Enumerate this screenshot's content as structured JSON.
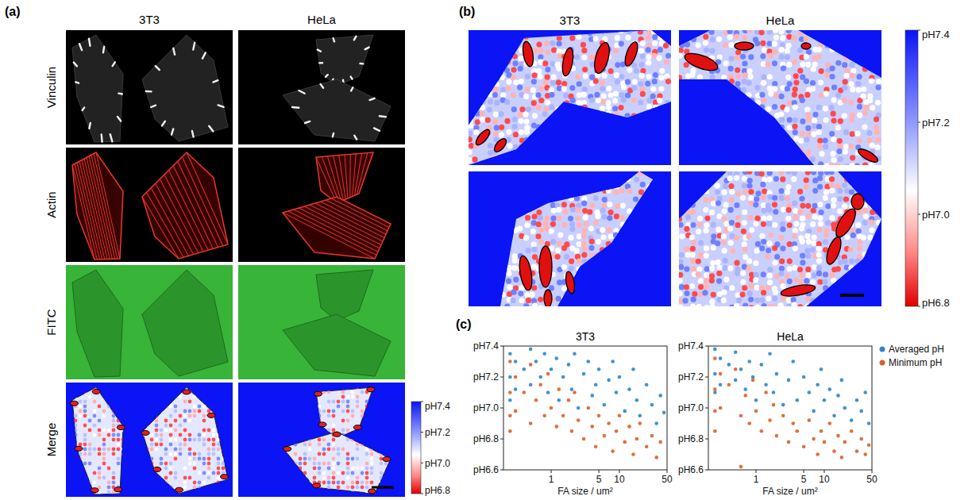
{
  "figure": {
    "panels": [
      {
        "label": "(a)",
        "columns": [
          "3T3",
          "HeLa"
        ],
        "rows": [
          "Vinculin",
          "Actin",
          "FITC",
          "Merge"
        ],
        "colorbar": {
          "range": [
            6.8,
            7.4
          ],
          "ticks": [
            {
              "value": 7.4,
              "label": "pH7.4"
            },
            {
              "value": 7.2,
              "label": "pH7.2"
            },
            {
              "value": 7.0,
              "label": "pH7.0"
            },
            {
              "value": 6.8,
              "label": "pH6.8"
            }
          ]
        }
      },
      {
        "label": "(b)",
        "columns": [
          "3T3",
          "HeLa"
        ],
        "colorbar": {
          "range": [
            6.8,
            7.4
          ],
          "ticks": [
            {
              "value": 7.4,
              "label": "pH7.4"
            },
            {
              "value": 7.2,
              "label": "pH7.2"
            },
            {
              "value": 7.0,
              "label": "pH7.0"
            },
            {
              "value": 6.8,
              "label": "pH6.8"
            }
          ]
        }
      },
      {
        "label": "(c)"
      }
    ]
  },
  "chart_data": [
    {
      "type": "scatter",
      "title": "3T3",
      "x_label": "FA size / um²",
      "log": "x",
      "grid": false,
      "xlim": [
        0.2,
        50
      ],
      "xticks": [
        1,
        5,
        10,
        50
      ],
      "ylim": [
        6.6,
        7.4
      ],
      "yticks": [
        {
          "value": 6.6,
          "label": "pH6.6"
        },
        {
          "value": 6.8,
          "label": "pH6.8"
        },
        {
          "value": 7.0,
          "label": "pH7.0"
        },
        {
          "value": 7.2,
          "label": "pH7.2"
        },
        {
          "value": 7.4,
          "label": "pH7.4"
        }
      ],
      "series": [
        {
          "name": "Averaged pH",
          "color": "#2f86c8",
          "marker": "circle",
          "x": [
            0.25,
            0.25,
            0.25,
            0.3,
            0.3,
            0.4,
            0.5,
            0.5,
            0.6,
            0.7,
            0.8,
            0.9,
            1,
            1.2,
            1.3,
            1.5,
            1.8,
            2,
            2.2,
            2.5,
            3,
            3.5,
            4,
            4.5,
            5,
            6,
            7,
            8,
            9,
            10,
            12,
            14,
            16,
            18,
            20,
            25,
            30,
            35,
            40,
            45
          ],
          "values": [
            7.35,
            7.2,
            7.05,
            7.3,
            7.12,
            7.25,
            7.38,
            7.15,
            7.3,
            7.2,
            7.35,
            7.1,
            7.25,
            7.32,
            7.05,
            7.2,
            7.28,
            7.12,
            7.35,
            7.0,
            7.22,
            7.3,
            7.08,
            7.15,
            7.25,
            7.02,
            7.18,
            7.3,
            7.1,
            7.2,
            6.98,
            7.12,
            7.25,
            7.05,
            6.95,
            7.15,
            7.02,
            6.9,
            7.08,
            6.97
          ]
        },
        {
          "name": "Minimum pH",
          "color": "#d9622b",
          "marker": "circle",
          "x": [
            0.25,
            0.25,
            0.25,
            0.25,
            0.3,
            0.3,
            0.4,
            0.5,
            0.5,
            0.6,
            0.7,
            0.8,
            0.9,
            1,
            1.2,
            1.3,
            1.5,
            1.8,
            2,
            2.2,
            2.5,
            3,
            3.5,
            4,
            4.5,
            5,
            6,
            7,
            8,
            9,
            10,
            12,
            14,
            16,
            18,
            20,
            25,
            30,
            35,
            40
          ],
          "values": [
            7.3,
            7.1,
            6.95,
            6.85,
            7.2,
            6.98,
            7.1,
            7.28,
            6.9,
            7.05,
            7.15,
            6.95,
            7.22,
            7.0,
            6.88,
            7.12,
            6.95,
            7.05,
            6.85,
            7.1,
            6.92,
            6.8,
            7.0,
            6.88,
            6.75,
            6.95,
            6.82,
            6.9,
            6.72,
            6.85,
            6.95,
            6.78,
            6.88,
            6.7,
            6.8,
            6.9,
            6.75,
            6.82,
            6.68,
            6.78
          ]
        }
      ]
    },
    {
      "type": "scatter",
      "title": "HeLa",
      "x_label": "FA size / um²",
      "log": "x",
      "grid": false,
      "legend": "right",
      "xlim": [
        0.2,
        50
      ],
      "xticks": [
        1,
        5,
        10,
        50
      ],
      "ylim": [
        6.6,
        7.4
      ],
      "yticks": [
        {
          "value": 6.6,
          "label": "pH6.6"
        },
        {
          "value": 6.8,
          "label": "pH6.8"
        },
        {
          "value": 7.0,
          "label": "pH7.0"
        },
        {
          "value": 7.2,
          "label": "pH7.2"
        },
        {
          "value": 7.4,
          "label": "pH7.4"
        }
      ],
      "series": [
        {
          "name": "Averaged pH",
          "color": "#2f86c8",
          "marker": "circle",
          "x": [
            0.25,
            0.25,
            0.25,
            0.3,
            0.3,
            0.4,
            0.5,
            0.5,
            0.6,
            0.7,
            0.8,
            0.9,
            1,
            1.2,
            1.4,
            1.6,
            1.8,
            2,
            2.5,
            3,
            3.5,
            4,
            5,
            6,
            7,
            8,
            9,
            10,
            12,
            14,
            16,
            18,
            20,
            25,
            30,
            35,
            40,
            45
          ],
          "values": [
            7.38,
            7.22,
            7.1,
            7.32,
            7.15,
            7.28,
            7.36,
            7.18,
            7.25,
            7.12,
            7.3,
            7.2,
            7.05,
            7.28,
            7.15,
            7.35,
            7.1,
            7.22,
            7.02,
            7.18,
            7.3,
            7.05,
            7.2,
            7.1,
            6.98,
            7.15,
            7.25,
            7.05,
            7.12,
            6.95,
            7.08,
            7.18,
            7.0,
            6.92,
            7.05,
            6.98,
            7.1,
            6.9
          ]
        },
        {
          "name": "Minimum pH",
          "color": "#d9622b",
          "marker": "circle",
          "x": [
            0.25,
            0.25,
            0.25,
            0.25,
            0.3,
            0.3,
            0.4,
            0.5,
            0.6,
            0.6,
            0.7,
            0.8,
            0.9,
            1,
            1.2,
            1.4,
            1.6,
            1.8,
            2,
            2.5,
            3,
            3.5,
            4,
            5,
            6,
            7,
            8,
            9,
            10,
            12,
            14,
            16,
            18,
            20,
            25,
            30,
            35,
            40,
            45
          ],
          "values": [
            7.32,
            7.12,
            6.98,
            6.85,
            7.22,
            7.0,
            7.15,
            7.25,
            6.62,
            6.95,
            7.08,
            6.9,
            7.18,
            6.98,
            6.85,
            7.1,
            6.92,
            7.02,
            6.82,
            6.95,
            6.78,
            6.9,
            6.85,
            6.75,
            6.92,
            6.8,
            6.7,
            6.85,
            6.78,
            6.9,
            6.72,
            6.82,
            6.68,
            6.78,
            6.85,
            6.72,
            6.8,
            6.7,
            6.76
          ]
        }
      ]
    }
  ]
}
